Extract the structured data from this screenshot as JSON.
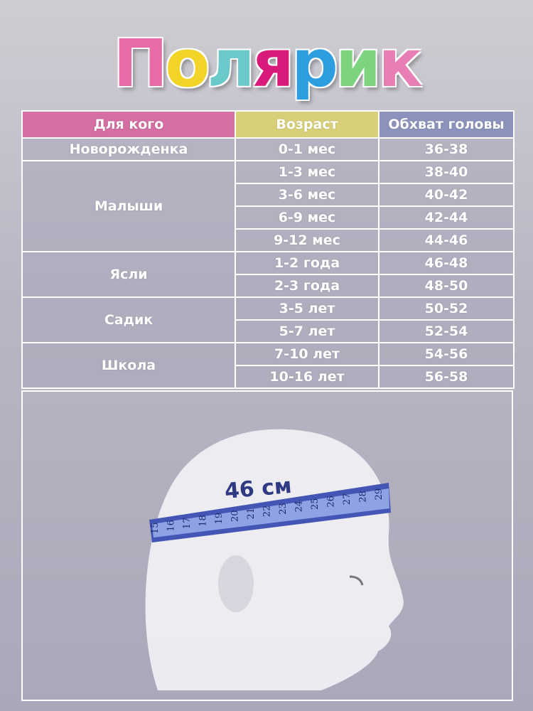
{
  "brand": {
    "logo_text": "Полярик",
    "letters": [
      "П",
      "о",
      "л",
      "я",
      "р",
      "и",
      "к"
    ]
  },
  "colors": {
    "header_who": "#d46ea3",
    "header_age": "#d8cf79",
    "header_head": "#8c92bb",
    "tape": "#4456b5"
  },
  "table": {
    "headers": [
      "Для кого",
      "Возраст",
      "Обхват головы"
    ],
    "groups": [
      {
        "label": "Новорожденка",
        "rows": [
          [
            "0-1 мес",
            "36-38"
          ]
        ]
      },
      {
        "label": "Малыши",
        "rows": [
          [
            "1-3  мес",
            "38-40"
          ],
          [
            "3-6  мес",
            "40-42"
          ],
          [
            "6-9  мес",
            "42-44"
          ],
          [
            "9-12  мес",
            "44-46"
          ]
        ]
      },
      {
        "label": "Ясли",
        "rows": [
          [
            "1-2 года",
            "46-48"
          ],
          [
            "2-3 года",
            "48-50"
          ]
        ]
      },
      {
        "label": "Садик",
        "rows": [
          [
            "3-5 лет",
            "50-52"
          ],
          [
            "5-7 лет",
            "52-54"
          ]
        ]
      },
      {
        "label": "Школа",
        "rows": [
          [
            "7-10 лет",
            "54-56"
          ],
          [
            "10-16 лет",
            "56-58"
          ]
        ]
      }
    ]
  },
  "illustration": {
    "measurement": "46 см",
    "tape_numbers": [
      "15",
      "16",
      "17",
      "18",
      "19",
      "20",
      "21",
      "22",
      "23",
      "24",
      "25",
      "26",
      "27",
      "28",
      "29"
    ]
  }
}
